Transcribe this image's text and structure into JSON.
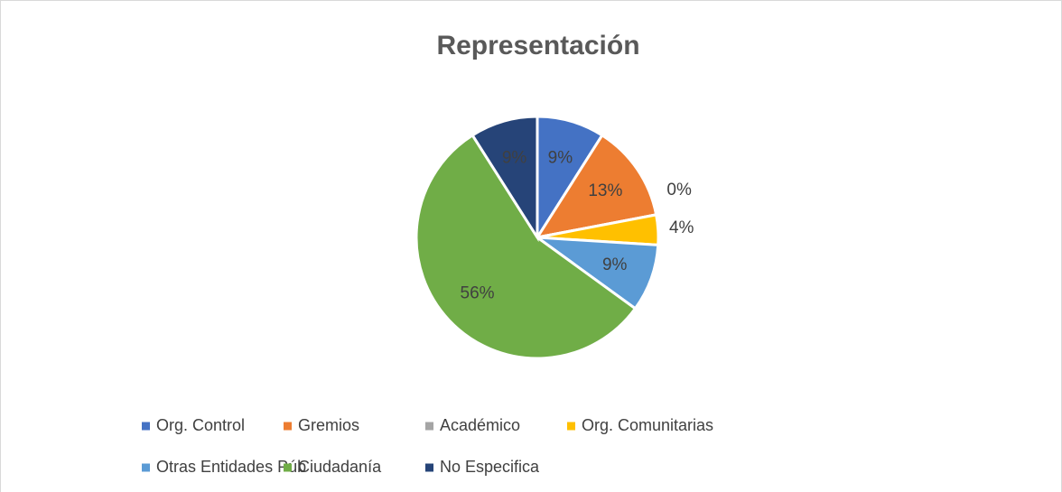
{
  "chart_data": {
    "type": "pie",
    "title": "Representación",
    "categories": [
      "Org. Control",
      "Gremios",
      "Académico",
      "Org. Comunitarias",
      "Otras Entidades Púb",
      "Ciudadanía",
      "No Especifica"
    ],
    "values": [
      9,
      13,
      0,
      4,
      9,
      56,
      9
    ],
    "value_labels": [
      "9%",
      "13%",
      "0%",
      "4%",
      "9%",
      "56%",
      "9%"
    ],
    "colors": [
      "#4472c4",
      "#ed7d31",
      "#a5a5a5",
      "#ffc000",
      "#5b9bd5",
      "#70ad47",
      "#264478"
    ],
    "legend": "bottom"
  }
}
